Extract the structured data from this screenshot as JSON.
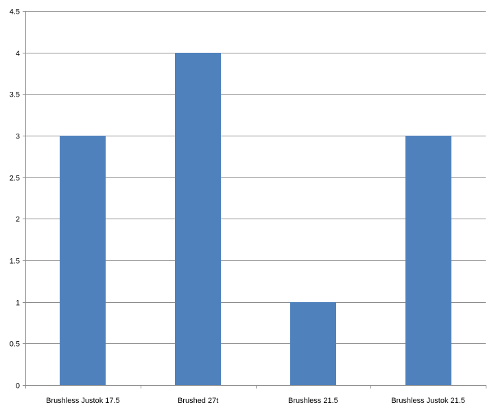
{
  "chart_data": {
    "type": "bar",
    "categories": [
      "Brushless Justok 17.5",
      "Brushed 27t",
      "Brushless 21.5",
      "Brushless Justok 21.5"
    ],
    "values": [
      3,
      4,
      1,
      3
    ],
    "title": "",
    "xlabel": "",
    "ylabel": "",
    "ylim": [
      0,
      4.5
    ],
    "yticks": [
      "0",
      "0.5",
      "1",
      "1.5",
      "2",
      "2.5",
      "3",
      "3.5",
      "4",
      "4.5"
    ],
    "grid": true,
    "legend": "none",
    "bar_color": "#4f81bd",
    "grid_color": "#8c8c8c"
  }
}
